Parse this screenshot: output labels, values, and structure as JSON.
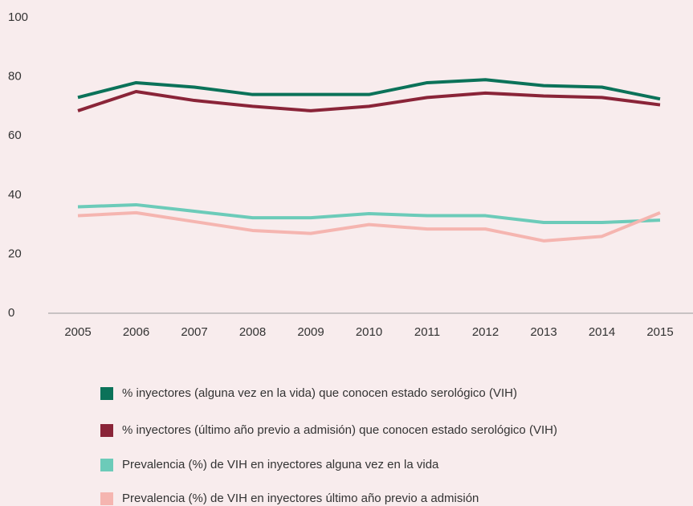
{
  "chart_data": {
    "type": "line",
    "x": [
      2005,
      2006,
      2007,
      2008,
      2009,
      2010,
      2011,
      2012,
      2013,
      2014,
      2015
    ],
    "xlim": [
      2005,
      2015
    ],
    "xticks": [
      2005,
      2006,
      2007,
      2008,
      2009,
      2010,
      2011,
      2012,
      2013,
      2014,
      2015
    ],
    "ylim": [
      0,
      100
    ],
    "yticks": [
      0,
      20,
      40,
      60,
      80,
      100
    ],
    "grid": false,
    "series": [
      {
        "name": "% inyectores (alguna vez en la vida) que conocen estado serológico (VIH)",
        "color": "#0b7259",
        "values": [
          73,
          78,
          76.5,
          74,
          74,
          74,
          78,
          79,
          77,
          76.5,
          72.5
        ]
      },
      {
        "name": "% inyectores (último año previo a admisión) que conocen estado serológico (VIH)",
        "color": "#8a2438",
        "values": [
          68.5,
          75,
          72,
          70,
          68.5,
          70,
          73,
          74.5,
          73.5,
          73,
          70.5
        ]
      },
      {
        "name": "Prevalencia (%) de VIH en inyectores alguna vez en la vida",
        "color": "#6ccbb9",
        "values": [
          36,
          36.7,
          34.5,
          32.3,
          32.3,
          33.7,
          33,
          33,
          30.7,
          30.7,
          31.5
        ]
      },
      {
        "name": "Prevalencia (%) de VIH en inyectores último año previo a admisión",
        "color": "#f5b5b0",
        "values": [
          33,
          34,
          31,
          28,
          27,
          30,
          28.5,
          28.5,
          24.5,
          26,
          34
        ]
      }
    ]
  }
}
